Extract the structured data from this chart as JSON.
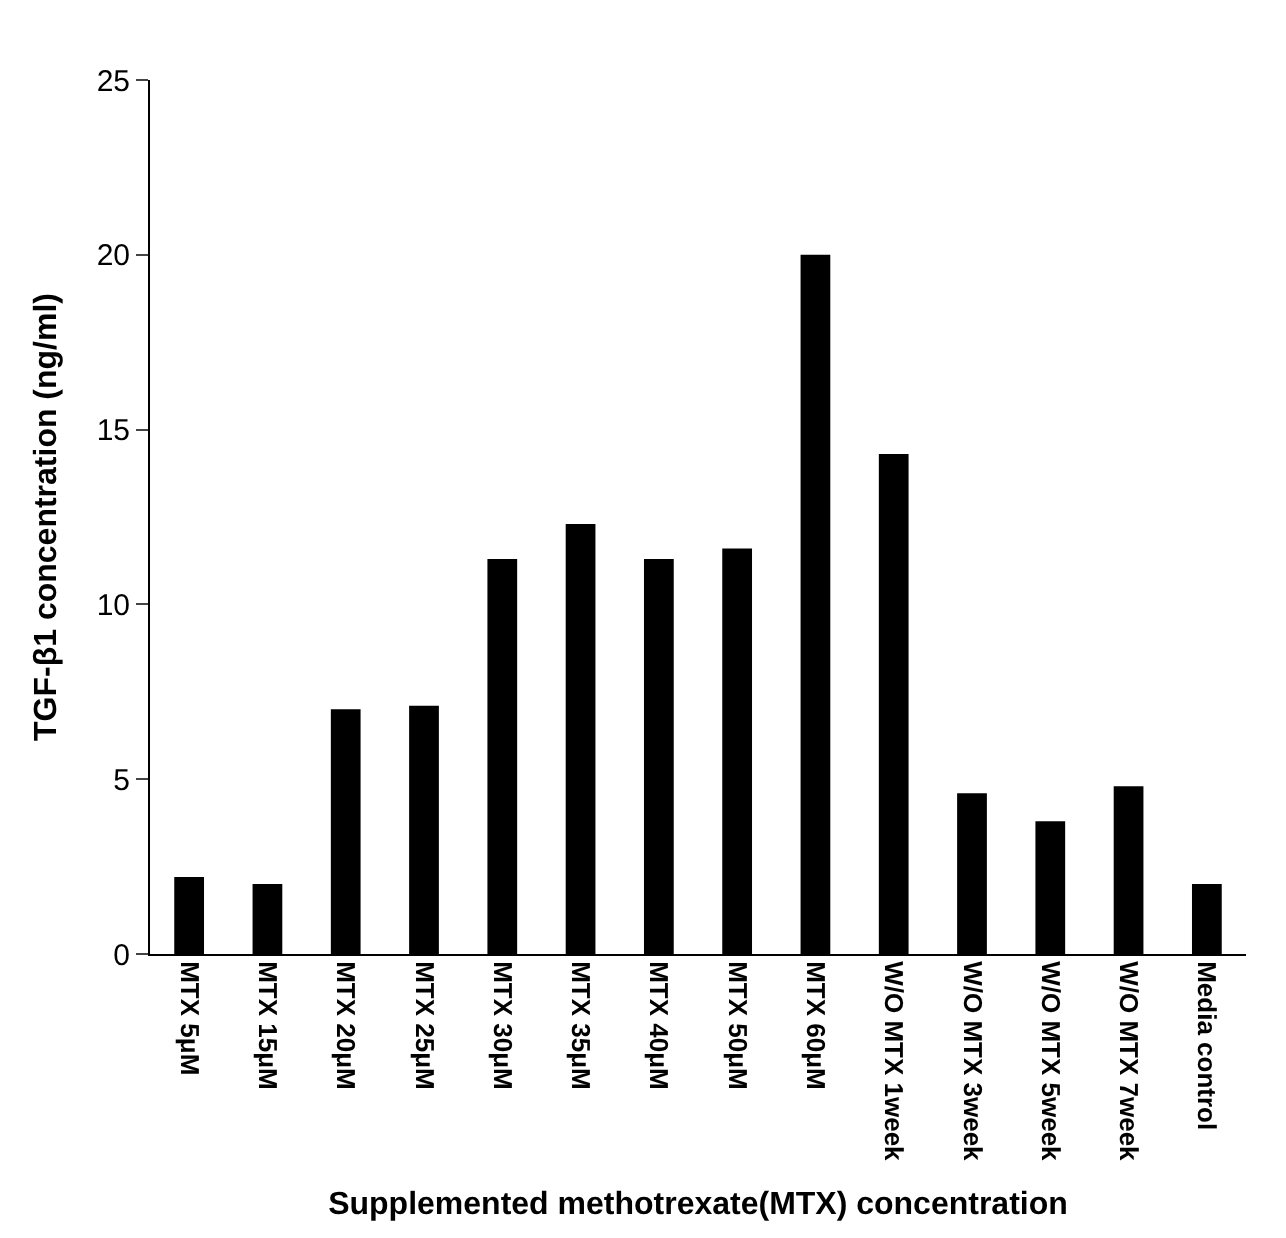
{
  "chart_data": {
    "type": "bar",
    "xlabel": "Supplemented methotrexate(MTX) concentration",
    "ylabel": "TGF-β1 concentration (ng/ml)",
    "categories": [
      "MTX 5μM",
      "MTX 15μM",
      "MTX 20μM",
      "MTX 25μM",
      "MTX 30μM",
      "MTX 35μM",
      "MTX 40μM",
      "MTX 50μM",
      "MTX 60μM",
      "W/O MTX 1week",
      "W/O MTX 3week",
      "W/O MTX 5week",
      "W/O MTX 7week",
      "Media control"
    ],
    "values": [
      2.2,
      2.0,
      7.0,
      7.1,
      11.3,
      12.3,
      11.3,
      11.6,
      20.0,
      14.3,
      4.6,
      3.8,
      4.8,
      2.0
    ],
    "color": "#000000",
    "ylim": [
      0,
      25
    ],
    "yticks": [
      0,
      5,
      10,
      15,
      20,
      25
    ]
  }
}
